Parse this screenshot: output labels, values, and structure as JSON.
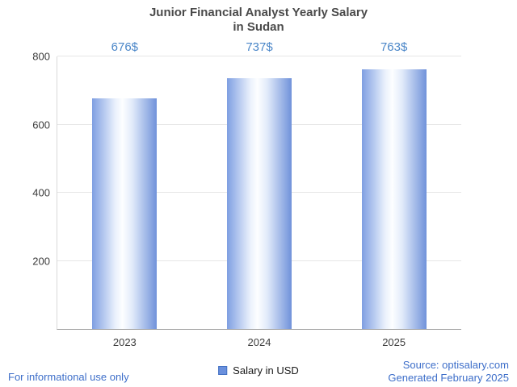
{
  "title": {
    "line1": "Junior Financial Analyst Yearly Salary",
    "line2": "in Sudan"
  },
  "chart_data": {
    "type": "bar",
    "categories": [
      "2023",
      "2024",
      "2025"
    ],
    "values": [
      676,
      737,
      763
    ],
    "value_labels": [
      "676$",
      "737$",
      "763$"
    ],
    "title": "Junior Financial Analyst Yearly Salary in Sudan",
    "xlabel": "",
    "ylabel": "",
    "ylim": [
      0,
      800
    ],
    "yticks": [
      200,
      400,
      600,
      800
    ],
    "grid": true,
    "legend_position": "bottom",
    "legend_entries": [
      "Salary in USD"
    ]
  },
  "colors": {
    "bar_edge": "#7f9fe2",
    "bar_edge_right": "#7092da",
    "bar_highlight": "#fdfeff",
    "value_label": "#4a86c8",
    "footer_blue": "#3d6ec9",
    "legend_swatch_fill": "#6a90dd",
    "legend_swatch_border": "#4472c4",
    "gridline": "#e6e6e6"
  },
  "legend": {
    "label": "Salary in USD"
  },
  "footer": {
    "left": "For informational use only",
    "source": "Source: optisalary.com",
    "generated": "Generated February 2025"
  }
}
